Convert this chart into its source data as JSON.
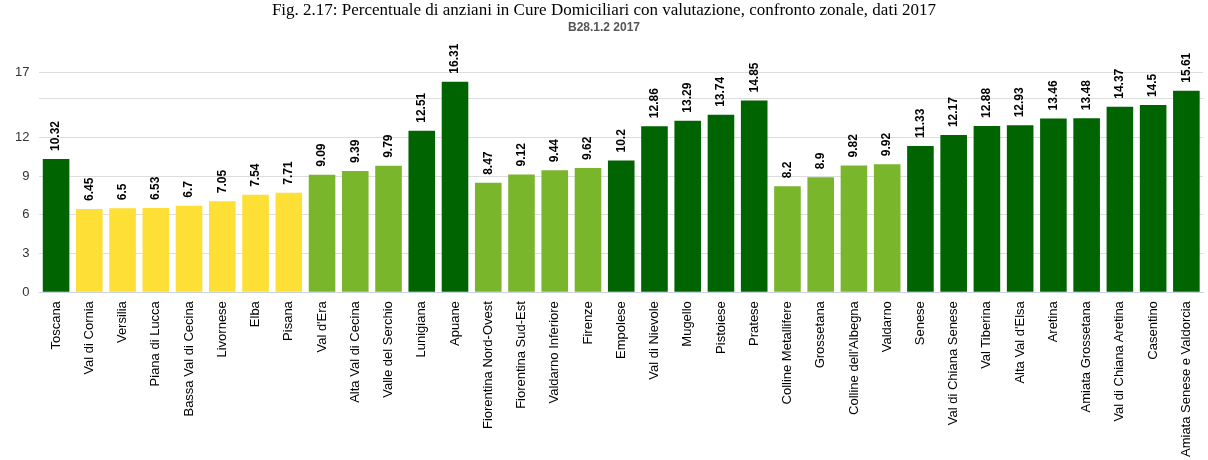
{
  "chart_data": {
    "type": "bar",
    "title": "Fig. 2.17: Percentuale di anziani in Cure Domiciliari con valutazione, confronto zonale, dati 2017",
    "subtitle": "B28.1.2 2017",
    "categories": [
      "Toscana",
      "Val di Cornia",
      "Versilia",
      "Piana di Lucca",
      "Bassa Val di Cecina",
      "Livornese",
      "Elba",
      "Pisana",
      "Val d'Era",
      "Alta Val di Cecina",
      "Valle del Serchio",
      "Lunigiana",
      "Apuane",
      "Fiorentina Nord-Ovest",
      "Fiorentina Sud-Est",
      "Valdarno Inferiore",
      "Firenze",
      "Empolese",
      "Val di Nievole",
      "Mugello",
      "Pistoiese",
      "Pratese",
      "Colline Metallifere",
      "Grossetana",
      "Colline dell'Albegna",
      "Valdarno",
      "Senese",
      "Val di Chiana Senese",
      "Val Tiberina",
      "Alta Val d'Elsa",
      "Aretina",
      "Amiata Grossetana",
      "Val di Chiana Aretina",
      "Casentino",
      "Amiata Senese e Valdorcia"
    ],
    "values": [
      10.32,
      6.45,
      6.5,
      6.53,
      6.7,
      7.05,
      7.54,
      7.71,
      9.09,
      9.39,
      9.79,
      12.51,
      16.31,
      8.47,
      9.12,
      9.44,
      9.62,
      10.2,
      12.86,
      13.29,
      13.74,
      14.85,
      8.2,
      8.9,
      9.82,
      9.92,
      11.33,
      12.17,
      12.88,
      12.93,
      13.46,
      13.48,
      14.37,
      14.5,
      15.61
    ],
    "colors": [
      "#006400",
      "#fddf35",
      "#fddf35",
      "#fddf35",
      "#fddf35",
      "#fddf35",
      "#fddf35",
      "#fddf35",
      "#7ab62c",
      "#7ab62c",
      "#7ab62c",
      "#006400",
      "#006400",
      "#7ab62c",
      "#7ab62c",
      "#7ab62c",
      "#7ab62c",
      "#006400",
      "#006400",
      "#006400",
      "#006400",
      "#006400",
      "#7ab62c",
      "#7ab62c",
      "#7ab62c",
      "#7ab62c",
      "#006400",
      "#006400",
      "#006400",
      "#006400",
      "#006400",
      "#006400",
      "#006400",
      "#006400",
      "#006400"
    ],
    "ylim": [
      0,
      17
    ],
    "yticks": [
      0,
      3,
      6,
      9,
      12,
      {
        "value": 15,
        "label": null
      },
      17
    ],
    "grid": "y",
    "data_labels": true,
    "legend": false
  }
}
